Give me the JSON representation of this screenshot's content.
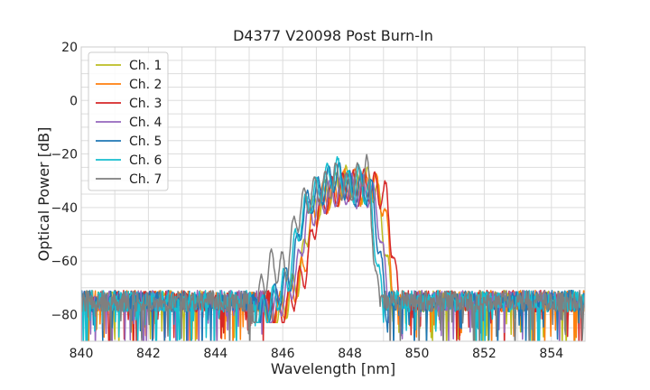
{
  "chart_data": {
    "type": "line",
    "title": "D4377 V20098 Post Burn-In",
    "xlabel": "Wavelength [nm]",
    "ylabel": "Optical Power [dB]",
    "xlim": [
      840,
      855
    ],
    "ylim": [
      -90,
      20
    ],
    "xticks": [
      840,
      842,
      844,
      846,
      848,
      850,
      852,
      854
    ],
    "yticks": [
      -80,
      -60,
      -40,
      -20,
      0,
      20
    ],
    "grid": true,
    "legend": {
      "placement": "top-left"
    },
    "noise_floor_db": -75,
    "series": [
      {
        "name": "Ch. 1",
        "color": "#bcbd22",
        "x": [
          845.5,
          846.0,
          846.5,
          846.8,
          847.1,
          847.4,
          847.7,
          848.0,
          848.3,
          848.6,
          848.9,
          849.3
        ],
        "y": [
          -75,
          -72,
          -60,
          -38,
          -32,
          -28,
          -25,
          -24,
          -27,
          -24,
          -33,
          -75
        ]
      },
      {
        "name": "Ch. 2",
        "color": "#ff7f0e",
        "x": [
          845.6,
          846.1,
          846.6,
          846.9,
          847.2,
          847.5,
          847.8,
          848.1,
          848.4,
          848.7,
          849.0,
          849.4
        ],
        "y": [
          -75,
          -70,
          -58,
          -38,
          -30,
          -29,
          -26,
          -25,
          -28,
          -25,
          -32,
          -75
        ]
      },
      {
        "name": "Ch. 3",
        "color": "#d62728",
        "x": [
          845.7,
          846.2,
          846.7,
          847.0,
          847.3,
          847.6,
          847.9,
          848.2,
          848.5,
          848.8,
          849.1,
          849.5
        ],
        "y": [
          -75,
          -70,
          -57,
          -37,
          -30,
          -28,
          -26,
          -27,
          -26,
          -27,
          -31,
          -75
        ]
      },
      {
        "name": "Ch. 4",
        "color": "#9467bd",
        "x": [
          845.4,
          845.9,
          846.4,
          846.7,
          847.0,
          847.3,
          847.6,
          847.9,
          848.2,
          848.5,
          848.8,
          849.2
        ],
        "y": [
          -75,
          -70,
          -60,
          -39,
          -33,
          -30,
          -28,
          -27,
          -28,
          -27,
          -33,
          -75
        ]
      },
      {
        "name": "Ch. 5",
        "color": "#1f77b4",
        "x": [
          845.3,
          845.8,
          846.3,
          846.6,
          846.9,
          847.2,
          847.5,
          847.8,
          848.1,
          848.4,
          848.7,
          849.1
        ],
        "y": [
          -75,
          -68,
          -58,
          -36,
          -30,
          -27,
          -22,
          -24,
          -28,
          -26,
          -31,
          -75
        ]
      },
      {
        "name": "Ch. 6",
        "color": "#17becf",
        "x": [
          845.2,
          845.7,
          846.2,
          846.5,
          846.8,
          847.1,
          847.4,
          847.7,
          848.0,
          848.3,
          848.6,
          849.0
        ],
        "y": [
          -75,
          -70,
          -59,
          -40,
          -31,
          -27,
          -22,
          -21,
          -27,
          -24,
          -30,
          -75
        ]
      },
      {
        "name": "Ch. 7",
        "color": "#7f7f7f",
        "x": [
          845.1,
          845.6,
          846.1,
          846.4,
          846.7,
          847.0,
          847.3,
          847.6,
          847.9,
          848.2,
          848.5,
          848.9
        ],
        "y": [
          -75,
          -56,
          -57,
          -38,
          -31,
          -28,
          -26,
          -23,
          -27,
          -24,
          -18,
          -75
        ]
      }
    ]
  }
}
